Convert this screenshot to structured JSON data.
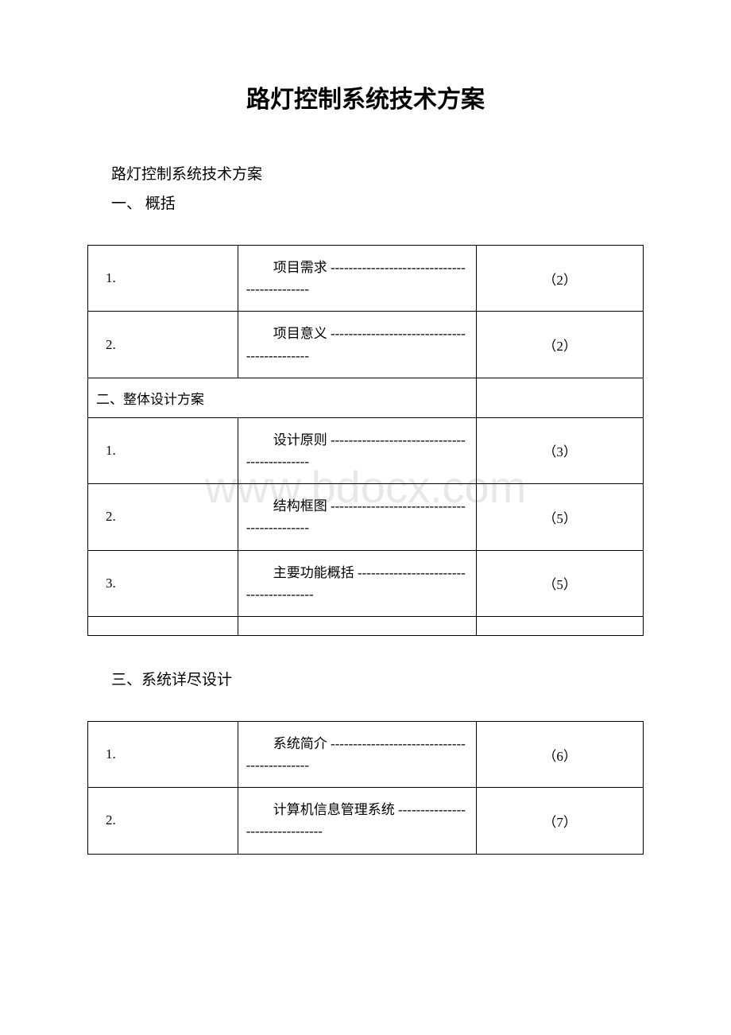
{
  "watermark": "www.bdocx.com",
  "title": "路灯控制系统技术方案",
  "subtitle": "路灯控制系统技术方案",
  "section1_heading": "一、 概括",
  "table1": {
    "rows": [
      {
        "num": "1.",
        "desc": "项目需求 --------------------------------------------",
        "page": "（2）"
      },
      {
        "num": "2.",
        "desc": "项目意义 --------------------------------------------",
        "page": "（2）"
      }
    ],
    "section_row": "二、整体设计方案",
    "rows2": [
      {
        "num": "1.",
        "desc": "设计原则 --------------------------------------------",
        "page": "（3）"
      },
      {
        "num": "2.",
        "desc": "结构框图 --------------------------------------------",
        "page": "（5）"
      },
      {
        "num": "3.",
        "desc": "主要功能概括 ---------------------------------------",
        "page": "（5）"
      }
    ]
  },
  "section3_heading": "三、系统详尽设计",
  "table2": {
    "rows": [
      {
        "num": "1.",
        "desc": "系统简介 --------------------------------------------",
        "page": "（6）"
      },
      {
        "num": "2.",
        "desc": "计算机信息管理系统 --------------------------------",
        "page": "（7）"
      }
    ]
  }
}
